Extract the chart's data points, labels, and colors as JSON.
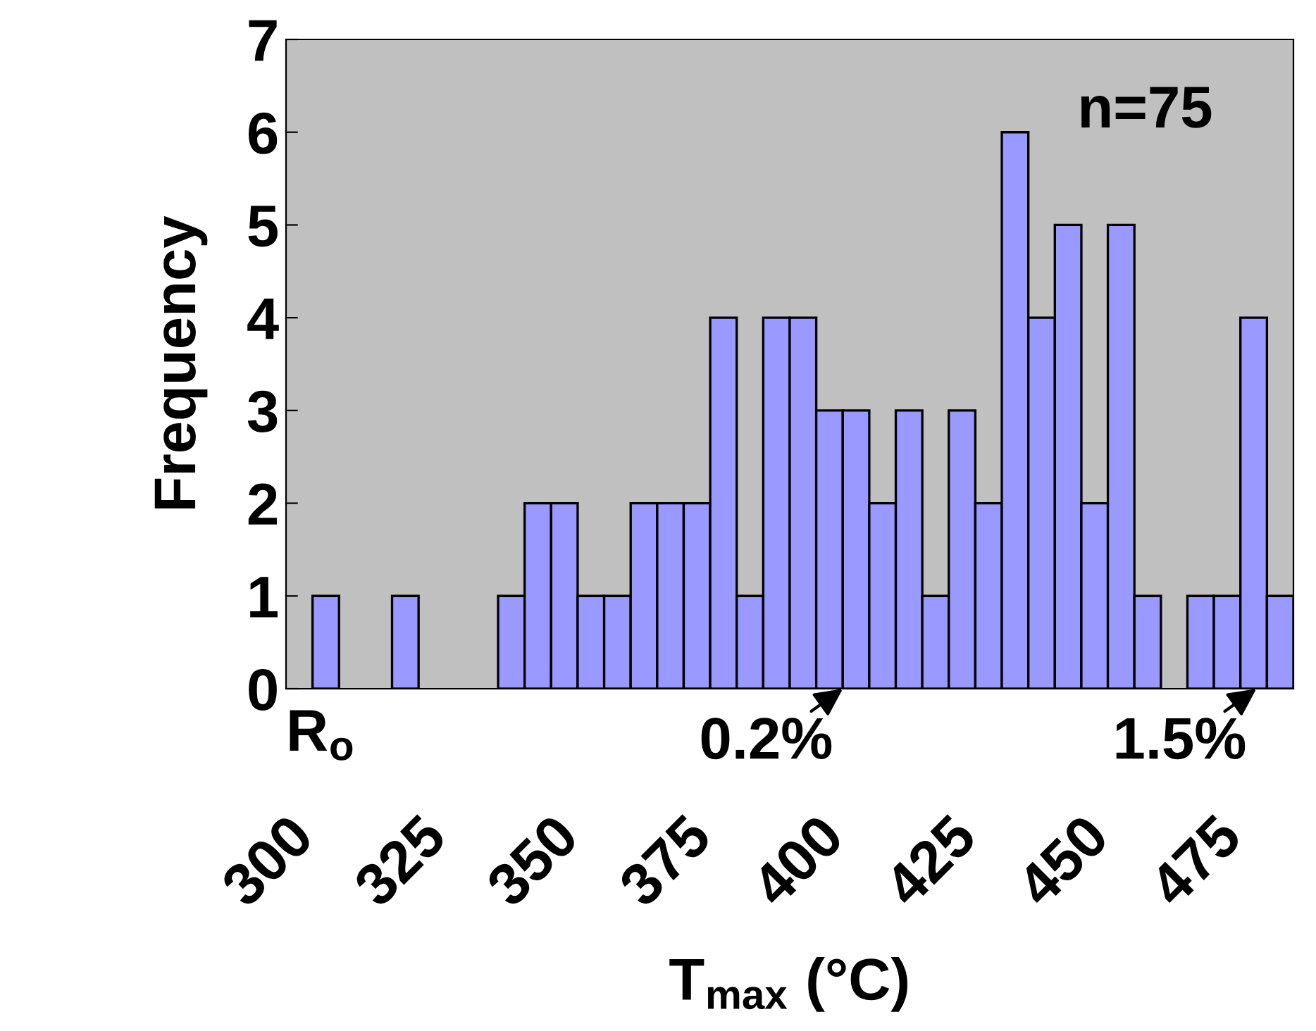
{
  "chart_data": {
    "type": "histogram",
    "xlabel": "T$_{max}$ (°C)",
    "ylabel": "Frequency",
    "bins": [
      305,
      310,
      315,
      320,
      325,
      330,
      335,
      340,
      345,
      350,
      355,
      360,
      365,
      370,
      375,
      380,
      385,
      390,
      395,
      400,
      405,
      410,
      415,
      420,
      425,
      430,
      435,
      440,
      445,
      450,
      455,
      460,
      465,
      470,
      475,
      480,
      485,
      490
    ],
    "values": [
      1,
      0,
      0,
      1,
      0,
      0,
      0,
      1,
      2,
      2,
      1,
      1,
      2,
      2,
      2,
      4,
      1,
      4,
      4,
      3,
      3,
      2,
      3,
      1,
      3,
      2,
      6,
      4,
      5,
      2,
      5,
      1,
      0,
      1,
      1,
      4,
      1
    ],
    "color": "#9999ff",
    "xlim": [
      300,
      490
    ],
    "xticks": [
      300,
      325,
      350,
      375,
      400,
      425,
      450,
      475
    ],
    "ylim": [
      0,
      7
    ],
    "yticks": [
      0,
      1,
      2,
      3,
      4,
      5,
      6,
      7
    ],
    "grid": false,
    "legend": false,
    "annotations": [
      "n=75",
      "R$_{o}$",
      {
        "text": "0.2%",
        "x": 405,
        "y": 0
      },
      {
        "text": "1.5%",
        "x": 483,
        "y": 0
      }
    ]
  }
}
